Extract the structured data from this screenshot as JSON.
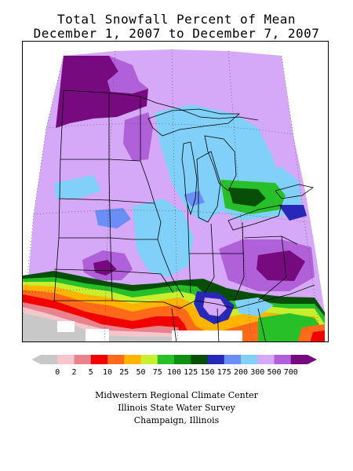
{
  "title": {
    "line1": "Total Snowfall Percent of Mean",
    "line2": "December 1, 2007 to December 7, 2007"
  },
  "legend": {
    "labels": [
      "0",
      "2",
      "5",
      "10",
      "25",
      "50",
      "75",
      "100",
      "125",
      "150",
      "175",
      "200",
      "300",
      "500",
      "700"
    ],
    "colors": [
      "#c8c8c8",
      "#f7c6cc",
      "#e8828c",
      "#f20000",
      "#ff6a1a",
      "#ffb400",
      "#c8ee30",
      "#28c028",
      "#109010",
      "#074f07",
      "#2828b8",
      "#6a8ef5",
      "#80d0fa",
      "#d6a8f8",
      "#b060d8",
      "#780a80"
    ]
  },
  "credits": {
    "line1": "Midwestern Regional Climate Center",
    "line2": "Illinois State Water Survey",
    "line3": "Champaign, Illinois"
  }
}
